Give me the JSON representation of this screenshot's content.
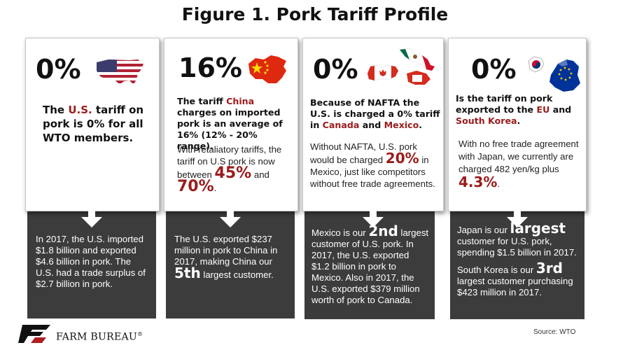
{
  "title": "Figure 1. Pork Tariff Profile",
  "colors": {
    "accent_red": "#9b1b1b",
    "panel_dark": "#3c3c3c"
  },
  "cards": [
    {
      "percent": "0%",
      "flag_icon": "usa-map-flag-icon",
      "lead": [
        "The ",
        "U.S.",
        " tariff on pork is 0% for all WTO members."
      ],
      "bottom": "In 2017, the U.S. imported $1.8 billion and exported $4.6 billion in pork. The U.S. had a trade surplus of $2.7 billion in pork."
    },
    {
      "percent": "16%",
      "flag_icon": "china-map-flag-icon",
      "lead": [
        "The tariff ",
        "China",
        " charges on imported pork is an average of 16% (12% - 20% range)."
      ],
      "body_pre": "With retaliatory tariffs, the tariff on U.S pork is now between ",
      "body_big1": "45%",
      "body_mid": " and ",
      "body_big2": "70%",
      "body_post": ".",
      "bottom_pre": "The U.S. exported $237 million in pork to China in 2017, making China our ",
      "bottom_big": "5th",
      "bottom_post": " largest customer."
    },
    {
      "percent": "0%",
      "flag_icon": "canada-mexico-map-flag-icon",
      "lead_pre": "Because of NAFTA the U.S. is charged a 0% tariff in ",
      "lead_red1": "Canada",
      "lead_mid": " and ",
      "lead_red2": "Mexico",
      "lead_post": ".",
      "body_pre": "Without NAFTA, U.S. pork would be charged ",
      "body_big": "20%",
      "body_post": " in Mexico, just like competitors without free trade agreements.",
      "bottom_pre": "Mexico is our ",
      "bottom_big": "2nd",
      "bottom_post": " largest customer of U.S. pork. In 2017, the U.S. exported $1.2 billion in pork to Mexico. Also in 2017, the U.S. exported $379 million worth of pork to Canada."
    },
    {
      "percent": "0%",
      "flag_icon": "korea-eu-flag-icon",
      "lead_pre": "Is the tariff on pork exported to the ",
      "lead_red1": "EU",
      "lead_mid": " and ",
      "lead_red2": "South Korea",
      "lead_post": ".",
      "body_pre": "With no free trade agreement with Japan, we currently are charged 482 yen/kg plus ",
      "body_big": "4.3%",
      "body_post": ".",
      "bottom1_pre": "Japan is our ",
      "bottom1_big": "largest",
      "bottom1_post": " customer for U.S. pork, spending $1.5 billion in 2017.",
      "bottom2_pre": "South Korea is our ",
      "bottom2_big": "3rd",
      "bottom2_post": " largest customer purchasing $423 million in 2017."
    }
  ],
  "footer": {
    "logo_text": "FARM BUREAU",
    "logo_mark": "®",
    "source": "Source: WTO"
  }
}
